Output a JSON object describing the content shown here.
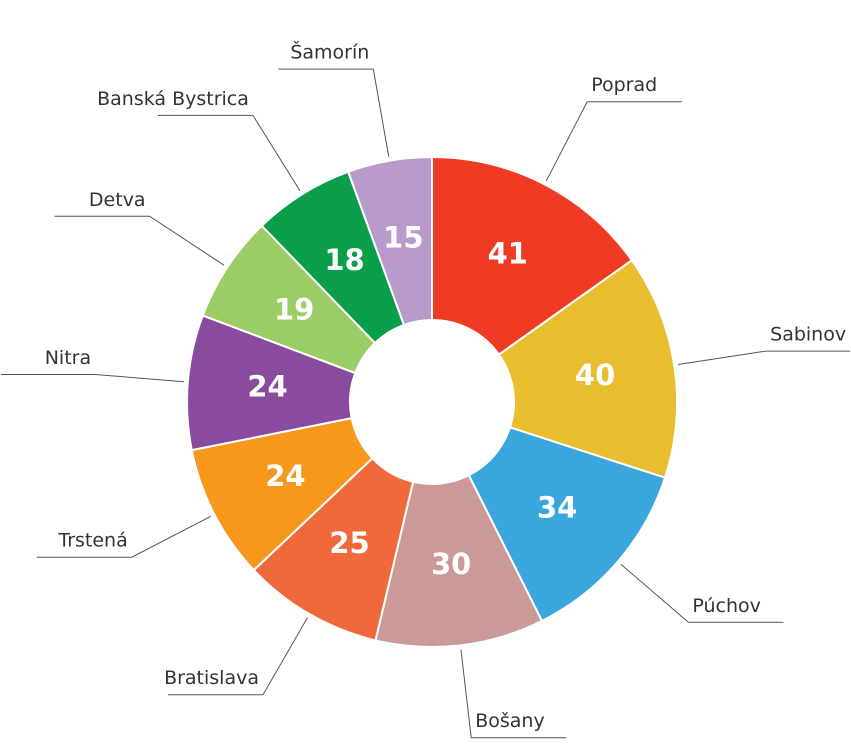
{
  "chart_data": {
    "type": "donut",
    "categories": [
      "Poprad",
      "Sabinov",
      "Púchov",
      "Bošany",
      "Bratislava",
      "Trstená",
      "Nitra",
      "Detva",
      "Banská Bystrica",
      "Šamorín"
    ],
    "values": [
      41,
      40,
      34,
      30,
      25,
      24,
      24,
      19,
      18,
      15
    ],
    "colors": [
      "#ef3b24",
      "#e8bd2e",
      "#39a6dd",
      "#cc9999",
      "#f0693a",
      "#f7981c",
      "#8a4a9e",
      "#9ccc66",
      "#0b9e4a",
      "#b89acb"
    ]
  }
}
